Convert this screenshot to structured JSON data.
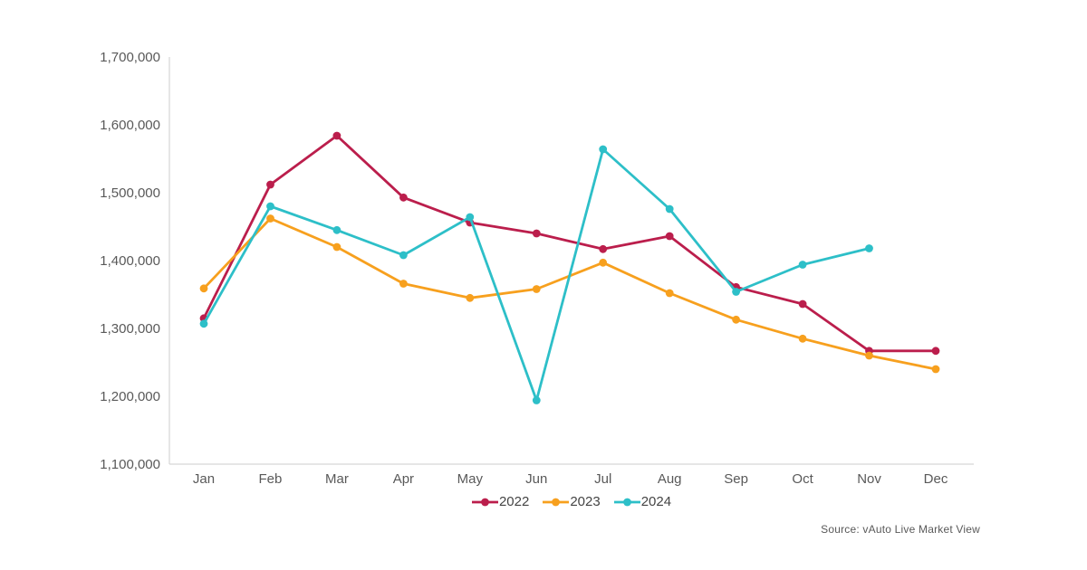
{
  "page": {
    "background": "#ffffff",
    "axis_color": "#d6d6d6",
    "label_color": "#595959",
    "legend_text_color": "#444444"
  },
  "source_note": "Source: vAuto Live Market View",
  "chart_data": {
    "type": "line",
    "title": "",
    "xlabel": "",
    "ylabel": "",
    "grid": false,
    "legend_position": "bottom-center",
    "categories": [
      "Jan",
      "Feb",
      "Mar",
      "Apr",
      "May",
      "Jun",
      "Jul",
      "Aug",
      "Sep",
      "Oct",
      "Nov",
      "Dec"
    ],
    "ylim": [
      1100000,
      1700000
    ],
    "ytick_step": 100000,
    "ytick_labels": [
      "1,100,000",
      "1,200,000",
      "1,300,000",
      "1,400,000",
      "1,500,000",
      "1,600,000",
      "1,700,000"
    ],
    "series": [
      {
        "name": "2022",
        "color": "#bb1e4c",
        "values": [
          1315000,
          1512000,
          1584000,
          1493000,
          1456000,
          1440000,
          1417000,
          1436000,
          1361000,
          1336000,
          1267000,
          1267000
        ]
      },
      {
        "name": "2023",
        "color": "#f7a01e",
        "values": [
          1359000,
          1462000,
          1420000,
          1366000,
          1345000,
          1358000,
          1397000,
          1352000,
          1313000,
          1285000,
          1260000,
          1240000
        ]
      },
      {
        "name": "2024",
        "color": "#2dbfc8",
        "values": [
          1307000,
          1480000,
          1445000,
          1408000,
          1464000,
          1194000,
          1564000,
          1476000,
          1354000,
          1394000,
          1418000,
          null
        ]
      }
    ]
  }
}
